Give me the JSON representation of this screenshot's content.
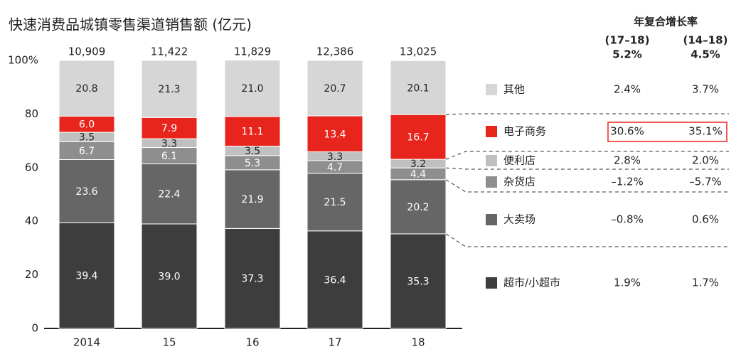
{
  "chart_data": {
    "type": "stacked_bar",
    "title": "快速消费品城镇零售渠道销售额 (亿元)",
    "categories": [
      "2014",
      "15",
      "16",
      "17",
      "18"
    ],
    "totals": {
      "values": [
        10909,
        11422,
        11829,
        12386,
        13025
      ],
      "value_labels": [
        "10,909",
        "11,422",
        "11,829",
        "12,386",
        "13,025"
      ]
    },
    "ylim": [
      0,
      100
    ],
    "yticks": [
      0,
      20,
      40,
      60,
      80,
      {
        "value": 100,
        "label": "100%"
      }
    ],
    "series": [
      {
        "name": "超市/小超市",
        "color": "#3d3d3d",
        "label_color": "#ffffff",
        "values": [
          39.4,
          39.0,
          37.3,
          36.4,
          35.3
        ],
        "value_labels": [
          "39.4",
          "39.0",
          "37.3",
          "36.4",
          "35.3"
        ],
        "cagr": [
          "1.9%",
          "1.7%"
        ]
      },
      {
        "name": "大卖场",
        "color": "#666666",
        "label_color": "#ffffff",
        "values": [
          23.6,
          22.4,
          21.9,
          21.5,
          20.2
        ],
        "value_labels": [
          "23.6",
          "22.4",
          "21.9",
          "21.5",
          "20.2"
        ],
        "cagr": [
          "–0.8%",
          "0.6%"
        ]
      },
      {
        "name": "杂货店",
        "color": "#8e8e8e",
        "label_color": "#ffffff",
        "values": [
          6.7,
          6.1,
          5.3,
          4.7,
          4.4
        ],
        "value_labels": [
          "6.7",
          "6.1",
          "5.3",
          "4.7",
          "4.4"
        ],
        "cagr": [
          "–1.2%",
          "–5.7%"
        ]
      },
      {
        "name": "便利店",
        "color": "#c0c0c0",
        "label_color": "#222222",
        "values": [
          3.5,
          3.3,
          3.5,
          3.3,
          3.2
        ],
        "value_labels": [
          "3.5",
          "3.3",
          "3.5",
          "3.3",
          "3.2"
        ],
        "cagr": [
          "2.8%",
          "2.0%"
        ]
      },
      {
        "name": "电子商务",
        "color": "#e8251d",
        "label_color": "#ffffff",
        "values": [
          6.0,
          7.9,
          11.1,
          13.4,
          16.7
        ],
        "value_labels": [
          "6.0",
          "7.9",
          "11.1",
          "13.4",
          "16.7"
        ],
        "cagr": [
          "30.6%",
          "35.1%"
        ]
      },
      {
        "name": "其他",
        "color": "#d6d6d6",
        "label_color": "#222222",
        "values": [
          20.8,
          21.3,
          21.0,
          20.7,
          20.1
        ],
        "value_labels": [
          "20.8",
          "21.3",
          "21.0",
          "20.7",
          "20.1"
        ],
        "cagr": [
          "2.4%",
          "3.7%"
        ]
      }
    ],
    "cagr_table": {
      "title": "年复合增长率",
      "columns": [
        "(17–18)",
        "(14–18)"
      ],
      "totals": [
        "5.2%",
        "4.5%"
      ]
    }
  }
}
